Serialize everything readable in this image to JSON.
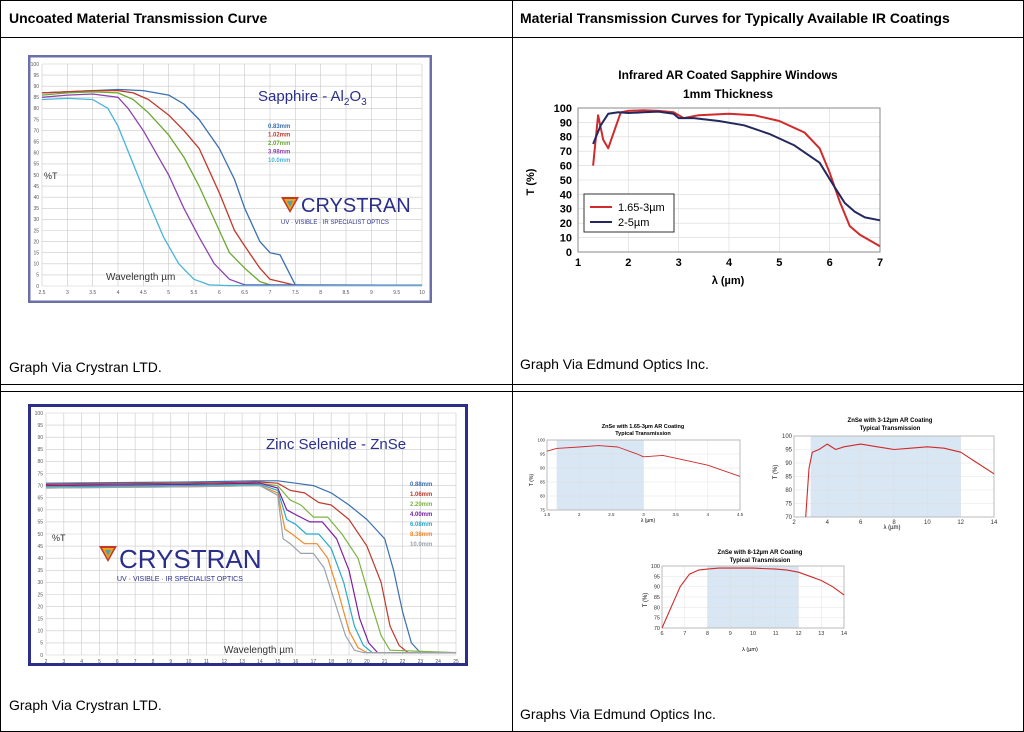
{
  "headers": {
    "left": "Uncoated Material Transmission Curve",
    "right": "Material Transmission Curves for Typically Available IR Coatings"
  },
  "captions": {
    "top_left": "Graph Via Crystran LTD.",
    "top_right": "Graph Via Edmund Optics Inc.",
    "bottom_left": "Graph Via Crystran LTD.",
    "bottom_right": "Graphs Via Edmund Optics Inc."
  },
  "logo": {
    "name": "CRYSTRAN",
    "tagline": "UV · VISIBLE · IR SPECIALIST OPTICS"
  },
  "colors": {
    "frame": "#6b6fa8",
    "frame_dark": "#2b2f8a",
    "edmund_red": "#d02a2a",
    "edmund_navy": "#23285e",
    "band": "#d9e6f3"
  },
  "chart_data": [
    {
      "type": "line",
      "title": "Sapphire - Al2O3",
      "title_main": "Sapphire - Al",
      "title_sub": "2",
      "title_main2": "O",
      "title_sub2": "3",
      "xlabel": "Wavelength µm",
      "ylabel": "%T",
      "xlim": [
        2.5,
        10
      ],
      "ylim": [
        0,
        100
      ],
      "xticks": [
        "2.5",
        "3",
        "3.5",
        "4",
        "4.5",
        "5",
        "5.5",
        "6",
        "6.5",
        "7",
        "7.5",
        "8",
        "8.5",
        "9",
        "9.5",
        "10"
      ],
      "yticks": [
        "0",
        "5",
        "10",
        "15",
        "20",
        "25",
        "30",
        "35",
        "40",
        "45",
        "50",
        "55",
        "60",
        "65",
        "70",
        "75",
        "80",
        "85",
        "90",
        "95",
        "100"
      ],
      "legend_placement": "right",
      "series": [
        {
          "name": "0.83mm",
          "color": "#3a6fb0",
          "x": [
            2.5,
            3,
            3.5,
            4,
            4.5,
            5,
            5.3,
            5.6,
            6,
            6.3,
            6.5,
            6.8,
            7,
            7.2,
            7.5,
            8,
            10
          ],
          "y": [
            87,
            87.5,
            88,
            88.5,
            88,
            86,
            82,
            75,
            62,
            48,
            35,
            20,
            15,
            14,
            0.5,
            0.3,
            0.3
          ]
        },
        {
          "name": "1.02mm",
          "color": "#c0392b",
          "x": [
            2.5,
            3,
            3.5,
            4,
            4.3,
            4.6,
            5,
            5.3,
            5.6,
            6,
            6.3,
            6.5,
            6.8,
            7,
            7.5,
            10
          ],
          "y": [
            87,
            87.5,
            88,
            88,
            87,
            84,
            77,
            70,
            62,
            42,
            25,
            18,
            8,
            3,
            0.3,
            0.3
          ]
        },
        {
          "name": "2.07mm",
          "color": "#6aa832",
          "x": [
            2.5,
            3,
            3.5,
            4,
            4.3,
            4.6,
            5,
            5.3,
            5.6,
            6,
            6.2,
            6.5,
            6.8,
            7,
            10
          ],
          "y": [
            86,
            87,
            87.5,
            87,
            84,
            78,
            68,
            58,
            45,
            25,
            15,
            8,
            2,
            0.5,
            0.3
          ]
        },
        {
          "name": "3.98mm",
          "color": "#8e44ad",
          "x": [
            2.5,
            3,
            3.5,
            4,
            4.2,
            4.5,
            4.8,
            5,
            5.3,
            5.6,
            5.9,
            6.2,
            6.5,
            10
          ],
          "y": [
            85,
            86,
            86.5,
            85,
            80,
            70,
            58,
            50,
            35,
            22,
            10,
            3,
            0.5,
            0.3
          ]
        },
        {
          "name": "10.0mm",
          "color": "#49b3d8",
          "x": [
            2.5,
            3,
            3.5,
            3.8,
            4,
            4.3,
            4.6,
            4.9,
            5.2,
            5.5,
            5.8,
            6.2,
            10
          ],
          "y": [
            84,
            84.5,
            84,
            80,
            72,
            55,
            38,
            22,
            10,
            3,
            0.5,
            0.2,
            0.2
          ]
        }
      ]
    },
    {
      "type": "line",
      "title_line1": "Infrared AR Coated Sapphire Windows",
      "title_line2": "1mm Thickness",
      "xlabel": "λ (µm)",
      "ylabel": "T (%)",
      "xlim": [
        1,
        7
      ],
      "ylim": [
        0,
        100
      ],
      "xticks": [
        "1",
        "2",
        "3",
        "4",
        "5",
        "6",
        "7"
      ],
      "yticks": [
        "0",
        "10",
        "20",
        "30",
        "40",
        "50",
        "60",
        "70",
        "80",
        "90",
        "100"
      ],
      "legend_placement": "bottom-left",
      "series": [
        {
          "name": "1.65-3µm",
          "color": "#d02a2a",
          "x": [
            1.3,
            1.4,
            1.5,
            1.6,
            1.7,
            1.85,
            2,
            2.3,
            2.6,
            2.9,
            3.1,
            3.4,
            4,
            4.5,
            5,
            5.5,
            5.8,
            6,
            6.2,
            6.4,
            6.6,
            6.8,
            7
          ],
          "y": [
            60,
            95,
            78,
            72,
            82,
            97,
            98,
            98.5,
            98,
            97,
            93,
            95,
            96,
            95,
            91,
            83,
            72,
            55,
            35,
            18,
            12,
            8,
            4
          ]
        },
        {
          "name": "2-5µm",
          "color": "#23285e",
          "x": [
            1.3,
            1.45,
            1.6,
            1.8,
            2,
            2.3,
            2.6,
            2.9,
            3,
            3.3,
            3.8,
            4.3,
            4.8,
            5.3,
            5.8,
            6.1,
            6.3,
            6.5,
            6.7,
            7
          ],
          "y": [
            75,
            88,
            96,
            97,
            96.5,
            97,
            97.5,
            96,
            93,
            93,
            91,
            88,
            82,
            74,
            62,
            45,
            34,
            28,
            24,
            22
          ]
        }
      ]
    },
    {
      "type": "line",
      "title": "Zinc Selenide - ZnSe",
      "xlabel": "Wavelength µm",
      "ylabel": "%T",
      "xlim": [
        2,
        25
      ],
      "ylim": [
        0,
        100
      ],
      "xticks": [
        "2",
        "3",
        "4",
        "5",
        "6",
        "7",
        "8",
        "9",
        "10",
        "11",
        "12",
        "13",
        "14",
        "15",
        "16",
        "17",
        "18",
        "19",
        "20",
        "21",
        "22",
        "23",
        "24",
        "25"
      ],
      "yticks": [
        "0",
        "5",
        "10",
        "15",
        "20",
        "25",
        "30",
        "35",
        "40",
        "45",
        "50",
        "55",
        "60",
        "65",
        "70",
        "75",
        "80",
        "85",
        "90",
        "95",
        "100"
      ],
      "legend_placement": "right",
      "series": [
        {
          "name": "0.88mm",
          "color": "#3a6fb0",
          "x": [
            2,
            10,
            14,
            15,
            16,
            17,
            18,
            19,
            20,
            21,
            21.5,
            22,
            22.5,
            23,
            25
          ],
          "y": [
            71,
            71.5,
            72,
            72,
            71,
            70,
            67,
            62,
            56,
            48,
            35,
            18,
            5,
            1,
            1
          ]
        },
        {
          "name": "1.06mm",
          "color": "#c0392b",
          "x": [
            2,
            10,
            14,
            15,
            15.7,
            16.5,
            17.3,
            18,
            19,
            20,
            20.8,
            21.3,
            21.8,
            22.3,
            25
          ],
          "y": [
            70.5,
            71,
            71.5,
            71,
            68,
            67,
            63,
            62,
            56,
            45,
            30,
            12,
            4,
            1,
            1
          ]
        },
        {
          "name": "2.20mm",
          "color": "#7cb342",
          "x": [
            2,
            10,
            14,
            15,
            15.7,
            16.3,
            17,
            17.8,
            18.6,
            19.5,
            20.3,
            20.8,
            21.3,
            25
          ],
          "y": [
            70,
            70.5,
            71,
            70,
            64,
            62,
            57,
            57,
            50,
            40,
            20,
            8,
            2,
            1
          ]
        },
        {
          "name": "4.00mm",
          "color": "#7b1fa2",
          "x": [
            2,
            10,
            14,
            15,
            15.5,
            16,
            16.8,
            17.5,
            18.3,
            19,
            19.6,
            20.1,
            20.6,
            25
          ],
          "y": [
            70,
            70.5,
            71,
            69,
            60,
            58,
            55,
            55,
            48,
            35,
            15,
            5,
            1,
            1
          ]
        },
        {
          "name": "6.08mm",
          "color": "#29a8c9",
          "x": [
            2,
            10,
            14,
            15,
            15.5,
            16,
            16.6,
            17.3,
            18,
            18.7,
            19.3,
            19.8,
            20.3,
            25
          ],
          "y": [
            69.5,
            70,
            70.5,
            68,
            56,
            54,
            50,
            50,
            44,
            30,
            12,
            4,
            1,
            1
          ]
        },
        {
          "name": "8.38mm",
          "color": "#ef8a2b",
          "x": [
            2,
            10,
            14,
            15,
            15.4,
            15.8,
            16.5,
            17.2,
            17.8,
            18.4,
            19,
            19.5,
            20,
            25
          ],
          "y": [
            69,
            69.5,
            70,
            67,
            52,
            50,
            46,
            46,
            40,
            26,
            10,
            3,
            1,
            1
          ]
        },
        {
          "name": "10.0mm",
          "color": "#9aa3ad",
          "x": [
            2,
            10,
            14,
            15,
            15.3,
            15.7,
            16.3,
            17,
            17.6,
            18.2,
            18.8,
            19.3,
            19.8,
            25
          ],
          "y": [
            69,
            69.5,
            70,
            66,
            48,
            46,
            42,
            42,
            36,
            22,
            8,
            2,
            1,
            1
          ]
        }
      ]
    },
    {
      "type": "line",
      "title_line1": "ZnSe with 1.65-3µm AR Coating",
      "title_line2": "Typical Transmission",
      "xlabel": "λ (µm)",
      "ylabel": "T (%)",
      "xlim": [
        1.5,
        4.5
      ],
      "ylim": [
        75,
        100
      ],
      "xticks": [
        "1.5",
        "2",
        "2.5",
        "3",
        "3.5",
        "4",
        "4.5"
      ],
      "yticks": [
        "75",
        "80",
        "85",
        "90",
        "95",
        "100"
      ],
      "band": [
        1.65,
        3
      ],
      "series": [
        {
          "name": "",
          "color": "#d02a2a",
          "x": [
            1.5,
            1.65,
            2,
            2.3,
            2.6,
            2.9,
            3,
            3.3,
            3.6,
            4,
            4.5
          ],
          "y": [
            96,
            97,
            97.5,
            98,
            97.5,
            95,
            94,
            94.5,
            93,
            91,
            87
          ]
        }
      ]
    },
    {
      "type": "line",
      "title_line1": "ZnSe with 3-12µm AR Coating",
      "title_line2": "Typical Transmission",
      "xlabel": "λ (µm)",
      "ylabel": "T (%)",
      "xlim": [
        2,
        14
      ],
      "ylim": [
        70,
        100
      ],
      "xticks": [
        "2",
        "4",
        "6",
        "8",
        "10",
        "12",
        "14"
      ],
      "yticks": [
        "70",
        "75",
        "80",
        "85",
        "90",
        "95",
        "100"
      ],
      "band": [
        3,
        12
      ],
      "series": [
        {
          "name": "",
          "color": "#d02a2a",
          "x": [
            2.7,
            2.9,
            3.1,
            3.5,
            4,
            4.5,
            5,
            6,
            7,
            8,
            9,
            10,
            11,
            12,
            13,
            14
          ],
          "y": [
            70,
            88,
            94,
            95,
            97,
            95,
            96,
            97,
            96,
            95,
            95.5,
            96,
            95.5,
            94,
            90,
            86
          ]
        }
      ]
    },
    {
      "type": "line",
      "title_line1": "ZnSe with 8-12µm AR Coating",
      "title_line2": "Typical Transmission",
      "xlabel": "λ (µm)",
      "ylabel": "T (%)",
      "xlim": [
        6,
        14
      ],
      "ylim": [
        70,
        100
      ],
      "xticks": [
        "6",
        "7",
        "8",
        "9",
        "10",
        "11",
        "12",
        "13",
        "14"
      ],
      "yticks": [
        "70",
        "75",
        "80",
        "85",
        "90",
        "95",
        "100"
      ],
      "band": [
        8,
        12
      ],
      "series": [
        {
          "name": "",
          "color": "#d02a2a",
          "x": [
            6,
            6.4,
            6.8,
            7.2,
            7.6,
            8,
            8.5,
            9,
            10,
            11,
            11.5,
            12,
            12.5,
            13,
            13.5,
            14
          ],
          "y": [
            70,
            80,
            90,
            96,
            98,
            98.5,
            99,
            99,
            99,
            98.5,
            98,
            97,
            95,
            93,
            90,
            86
          ]
        }
      ]
    }
  ]
}
